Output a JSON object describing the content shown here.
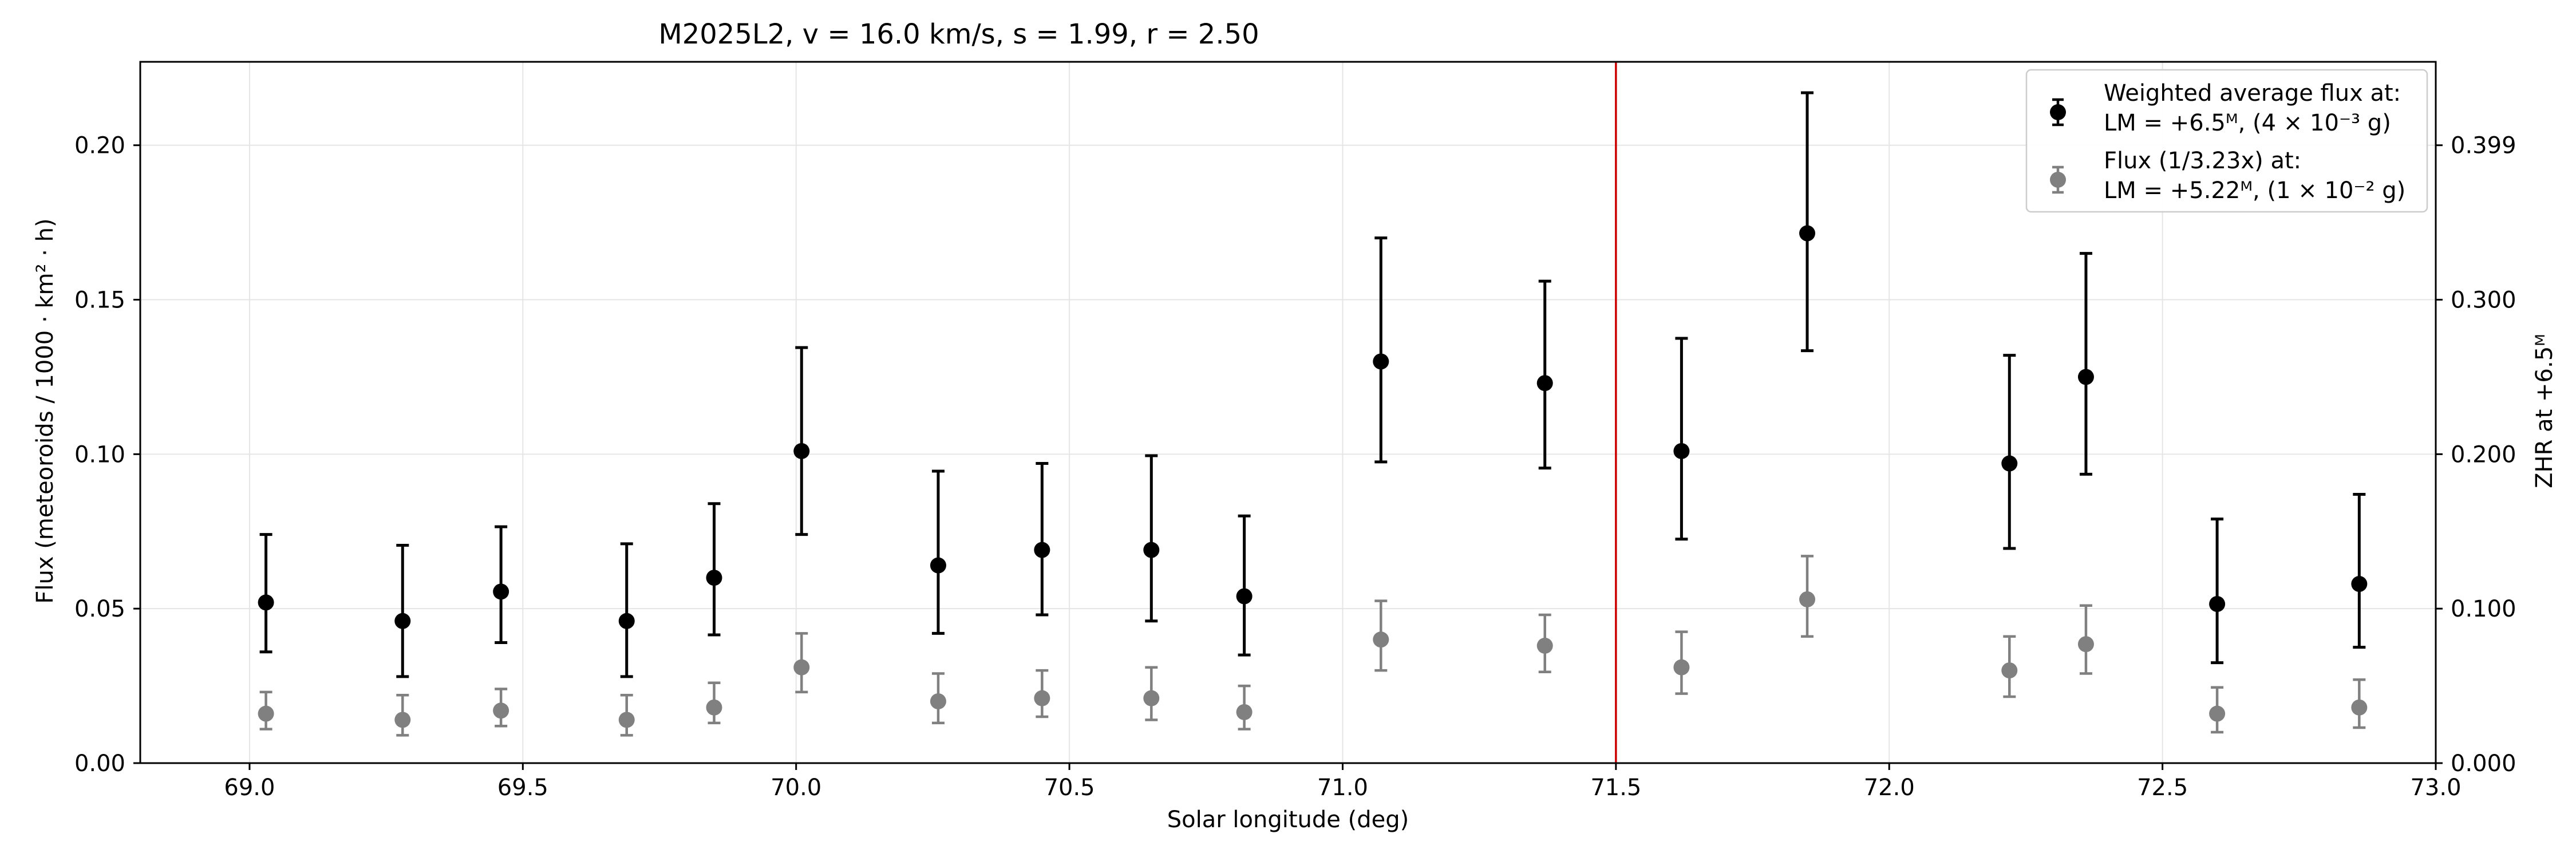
{
  "chart_data": {
    "type": "scatter",
    "title": "M2025L2, v = 16.0 km/s, s = 1.99, r = 2.50",
    "xlabel": "Solar longitude (deg)",
    "ylabel": "Flux (meteoroids / 1000 · km² · h)",
    "y2label": "ZHR at +6.5ᴹ",
    "xlim": [
      68.8,
      73.0
    ],
    "ylim": [
      0.0,
      0.227
    ],
    "x_ticks": [
      "69.0",
      "69.5",
      "70.0",
      "70.5",
      "71.0",
      "71.5",
      "72.0",
      "72.5",
      "73.0"
    ],
    "y_ticks": [
      "0.00",
      "0.05",
      "0.10",
      "0.15",
      "0.20"
    ],
    "y2_ticks": [
      "0.000",
      "0.100",
      "0.200",
      "0.300",
      "0.399"
    ],
    "grid": true,
    "legend_position": "top-right",
    "vertical_line": {
      "x": 71.5,
      "color": "#cc0000"
    },
    "series": [
      {
        "name": "Weighted average flux at:\nLM = +6.5ᴹ, (4 × 10⁻³ g)",
        "color": "#000000",
        "points": [
          {
            "x": 69.03,
            "y": 0.052,
            "lo": 0.036,
            "hi": 0.074
          },
          {
            "x": 69.28,
            "y": 0.046,
            "lo": 0.028,
            "hi": 0.0705
          },
          {
            "x": 69.46,
            "y": 0.0555,
            "lo": 0.039,
            "hi": 0.0765
          },
          {
            "x": 69.69,
            "y": 0.046,
            "lo": 0.028,
            "hi": 0.071
          },
          {
            "x": 69.85,
            "y": 0.06,
            "lo": 0.0415,
            "hi": 0.084
          },
          {
            "x": 70.01,
            "y": 0.101,
            "lo": 0.074,
            "hi": 0.1345
          },
          {
            "x": 70.26,
            "y": 0.064,
            "lo": 0.042,
            "hi": 0.0945
          },
          {
            "x": 70.45,
            "y": 0.069,
            "lo": 0.048,
            "hi": 0.097
          },
          {
            "x": 70.65,
            "y": 0.069,
            "lo": 0.046,
            "hi": 0.0995
          },
          {
            "x": 70.82,
            "y": 0.054,
            "lo": 0.035,
            "hi": 0.08
          },
          {
            "x": 71.07,
            "y": 0.13,
            "lo": 0.0975,
            "hi": 0.17
          },
          {
            "x": 71.37,
            "y": 0.123,
            "lo": 0.0955,
            "hi": 0.156
          },
          {
            "x": 71.62,
            "y": 0.101,
            "lo": 0.0725,
            "hi": 0.1375
          },
          {
            "x": 71.85,
            "y": 0.1715,
            "lo": 0.1335,
            "hi": 0.217
          },
          {
            "x": 72.22,
            "y": 0.097,
            "lo": 0.0695,
            "hi": 0.132
          },
          {
            "x": 72.36,
            "y": 0.125,
            "lo": 0.0935,
            "hi": 0.165
          },
          {
            "x": 72.6,
            "y": 0.0515,
            "lo": 0.0325,
            "hi": 0.079
          },
          {
            "x": 72.86,
            "y": 0.058,
            "lo": 0.0375,
            "hi": 0.087
          }
        ]
      },
      {
        "name": "Flux (1/3.23x) at:\nLM = +5.22ᴹ, (1 × 10⁻² g)",
        "color": "#808080",
        "points": [
          {
            "x": 69.03,
            "y": 0.016,
            "lo": 0.011,
            "hi": 0.023
          },
          {
            "x": 69.28,
            "y": 0.014,
            "lo": 0.009,
            "hi": 0.022
          },
          {
            "x": 69.46,
            "y": 0.017,
            "lo": 0.012,
            "hi": 0.024
          },
          {
            "x": 69.69,
            "y": 0.014,
            "lo": 0.009,
            "hi": 0.022
          },
          {
            "x": 69.85,
            "y": 0.018,
            "lo": 0.013,
            "hi": 0.026
          },
          {
            "x": 70.01,
            "y": 0.031,
            "lo": 0.023,
            "hi": 0.042
          },
          {
            "x": 70.26,
            "y": 0.02,
            "lo": 0.013,
            "hi": 0.029
          },
          {
            "x": 70.45,
            "y": 0.021,
            "lo": 0.015,
            "hi": 0.03
          },
          {
            "x": 70.65,
            "y": 0.021,
            "lo": 0.014,
            "hi": 0.031
          },
          {
            "x": 70.82,
            "y": 0.0165,
            "lo": 0.011,
            "hi": 0.025
          },
          {
            "x": 71.07,
            "y": 0.04,
            "lo": 0.03,
            "hi": 0.0525
          },
          {
            "x": 71.37,
            "y": 0.038,
            "lo": 0.0295,
            "hi": 0.048
          },
          {
            "x": 71.62,
            "y": 0.031,
            "lo": 0.0225,
            "hi": 0.0425
          },
          {
            "x": 71.85,
            "y": 0.053,
            "lo": 0.041,
            "hi": 0.067
          },
          {
            "x": 72.22,
            "y": 0.03,
            "lo": 0.0215,
            "hi": 0.041
          },
          {
            "x": 72.36,
            "y": 0.0385,
            "lo": 0.029,
            "hi": 0.051
          },
          {
            "x": 72.6,
            "y": 0.016,
            "lo": 0.01,
            "hi": 0.0245
          },
          {
            "x": 72.86,
            "y": 0.018,
            "lo": 0.0115,
            "hi": 0.027
          }
        ]
      }
    ]
  }
}
